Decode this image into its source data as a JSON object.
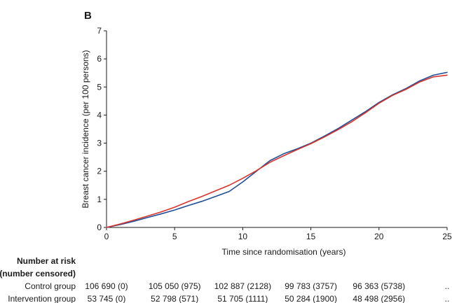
{
  "chart_data": {
    "type": "line",
    "panel_label": "B",
    "xlabel": "Time since randomisation (years)",
    "ylabel": "Breast cancer incidence (per 100 persons)",
    "xlim": [
      0,
      25
    ],
    "ylim": [
      0,
      7
    ],
    "x_ticks": [
      "0",
      "5",
      "10",
      "15",
      "20",
      "25"
    ],
    "y_ticks": [
      "0",
      "1",
      "2",
      "3",
      "4",
      "5",
      "6",
      "7"
    ],
    "grid": false,
    "series": [
      {
        "color": "#1f4e9a",
        "points": [
          [
            0,
            0
          ],
          [
            1,
            0.1
          ],
          [
            2,
            0.22
          ],
          [
            3,
            0.35
          ],
          [
            4,
            0.48
          ],
          [
            5,
            0.62
          ],
          [
            6,
            0.78
          ],
          [
            7,
            0.93
          ],
          [
            8,
            1.1
          ],
          [
            9,
            1.28
          ],
          [
            10,
            1.62
          ],
          [
            11,
            2.0
          ],
          [
            12,
            2.38
          ],
          [
            13,
            2.62
          ],
          [
            14,
            2.8
          ],
          [
            15,
            3.0
          ],
          [
            16,
            3.25
          ],
          [
            17,
            3.52
          ],
          [
            18,
            3.82
          ],
          [
            19,
            4.12
          ],
          [
            20,
            4.45
          ],
          [
            21,
            4.72
          ],
          [
            22,
            4.95
          ],
          [
            23,
            5.22
          ],
          [
            24,
            5.42
          ],
          [
            25,
            5.52
          ]
        ]
      },
      {
        "color": "#d9342b",
        "points": [
          [
            0,
            0
          ],
          [
            1,
            0.12
          ],
          [
            2,
            0.26
          ],
          [
            3,
            0.4
          ],
          [
            4,
            0.55
          ],
          [
            5,
            0.72
          ],
          [
            6,
            0.92
          ],
          [
            7,
            1.1
          ],
          [
            8,
            1.3
          ],
          [
            9,
            1.5
          ],
          [
            10,
            1.75
          ],
          [
            11,
            2.02
          ],
          [
            12,
            2.32
          ],
          [
            13,
            2.55
          ],
          [
            14,
            2.77
          ],
          [
            15,
            2.98
          ],
          [
            16,
            3.22
          ],
          [
            17,
            3.48
          ],
          [
            18,
            3.76
          ],
          [
            19,
            4.08
          ],
          [
            20,
            4.42
          ],
          [
            21,
            4.7
          ],
          [
            22,
            4.92
          ],
          [
            23,
            5.18
          ],
          [
            24,
            5.36
          ],
          [
            25,
            5.42
          ]
        ]
      }
    ]
  },
  "risk_table": {
    "title_line1": "Number at risk",
    "title_line2": "(number censored)",
    "rows": [
      {
        "label": "Control group",
        "values": [
          "106 690 (0)",
          "105 050 (975)",
          "102 887 (2128)",
          "99 783 (3757)",
          "96 363 (5738)",
          ".."
        ]
      },
      {
        "label": "Intervention group",
        "values": [
          "53 745 (0)",
          "52 798 (571)",
          "51 705 (1111)",
          "50 284 (1900)",
          "48 498 (2956)",
          ".."
        ]
      }
    ]
  }
}
